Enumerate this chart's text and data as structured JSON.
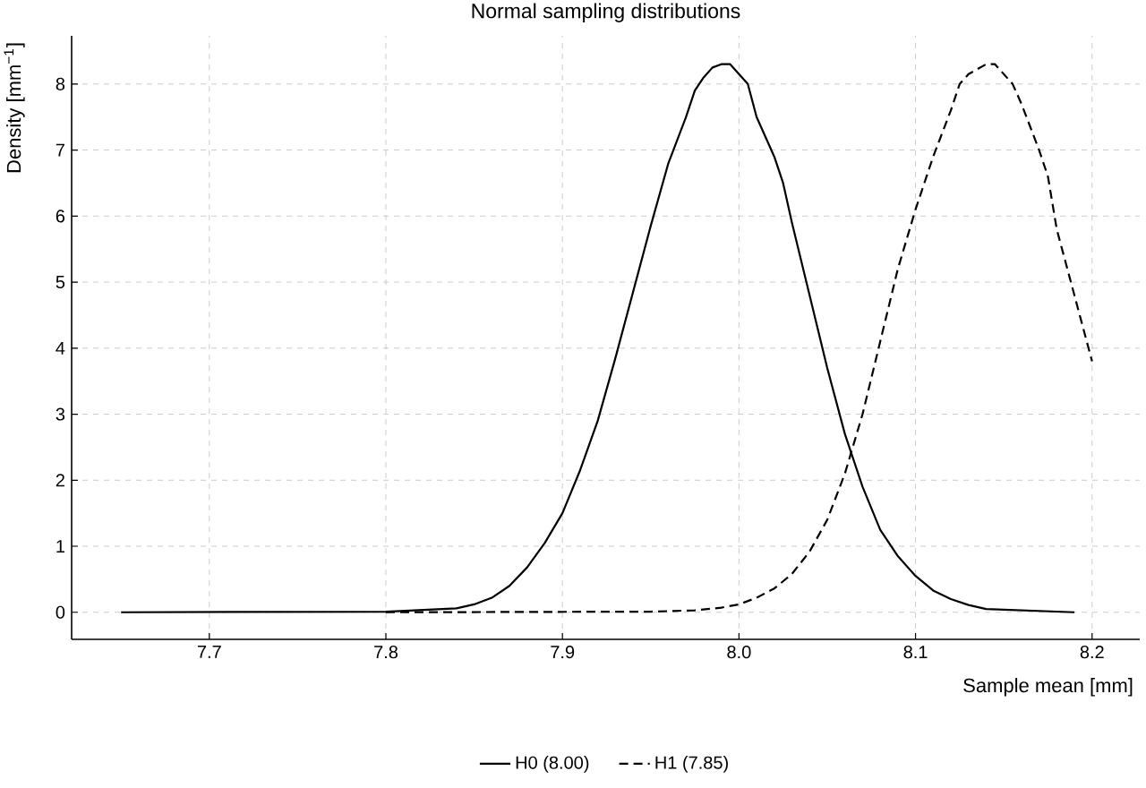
{
  "chart_data": {
    "type": "line",
    "title": "Normal sampling distributions",
    "xlabel": "Sample mean [mm]",
    "ylabel": "Density [mm$^{−1}$]",
    "xlim": [
      7.622,
      8.227
    ],
    "ylim": [
      -0.41,
      8.73
    ],
    "xticks": [
      7.7,
      7.8,
      7.9,
      {
        "value": 8.0,
        "label": "8.0"
      },
      8.1,
      8.2
    ],
    "yticks": [
      0,
      1,
      2,
      3,
      4,
      5,
      6,
      7,
      8
    ],
    "grid": true,
    "legend": "bottom",
    "series": [
      {
        "name": "H0 (8.00)",
        "color": "#000000",
        "line_style": "solid",
        "x": [
          7.65,
          7.8,
          7.84,
          7.85,
          7.86,
          7.87,
          7.88,
          7.89,
          7.9,
          7.91,
          7.92,
          7.93,
          7.94,
          7.95,
          7.96,
          7.97,
          7.975,
          7.98,
          7.985,
          7.99,
          7.995,
          8.0,
          8.005,
          8.01,
          8.02,
          8.025,
          8.03,
          8.04,
          8.05,
          8.06,
          8.07,
          8.08,
          8.09,
          8.1,
          8.11,
          8.12,
          8.13,
          8.14,
          8.19
        ],
        "values": [
          0,
          0.01,
          0.06,
          0.12,
          0.22,
          0.4,
          0.68,
          1.05,
          1.5,
          2.15,
          2.9,
          3.85,
          4.85,
          5.85,
          6.8,
          7.5,
          7.9,
          8.1,
          8.25,
          8.3,
          8.3,
          8.15,
          8.0,
          7.5,
          6.9,
          6.5,
          5.9,
          4.8,
          3.7,
          2.7,
          1.9,
          1.25,
          0.85,
          0.55,
          0.33,
          0.2,
          0.11,
          0.05,
          0
        ]
      },
      {
        "name": "H1 (7.85)",
        "color": "#000000",
        "line_style": "dashed",
        "x": [
          7.8,
          7.95,
          7.975,
          7.99,
          8.0,
          8.01,
          8.02,
          8.03,
          8.04,
          8.05,
          8.06,
          8.07,
          8.08,
          8.09,
          8.1,
          8.11,
          8.12,
          8.125,
          8.13,
          8.14,
          8.145,
          8.15,
          8.155,
          8.16,
          8.17,
          8.175,
          8.18,
          8.19,
          8.2
        ],
        "values": [
          0,
          0.01,
          0.03,
          0.07,
          0.12,
          0.22,
          0.36,
          0.58,
          0.92,
          1.4,
          2.1,
          3.0,
          4.1,
          5.2,
          6.1,
          6.9,
          7.6,
          8.0,
          8.15,
          8.3,
          8.3,
          8.15,
          8.0,
          7.7,
          7.0,
          6.6,
          5.8,
          4.8,
          3.8
        ]
      }
    ]
  }
}
